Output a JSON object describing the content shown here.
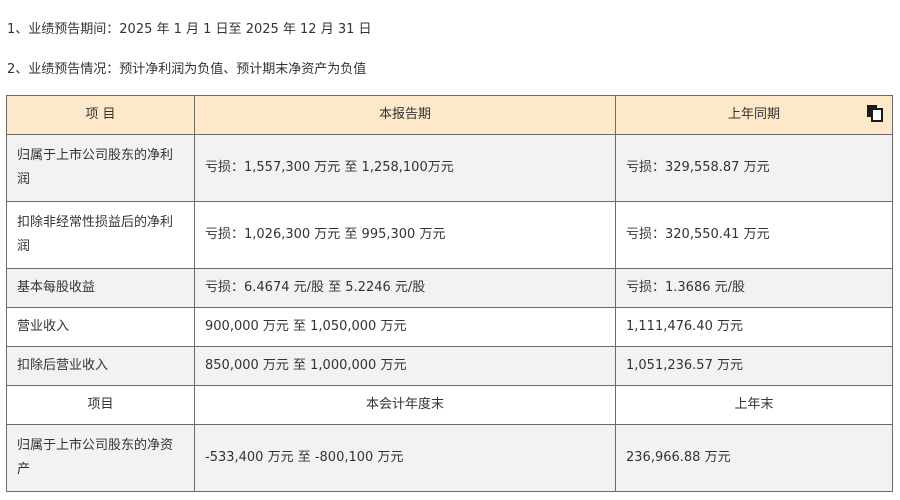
{
  "paragraphs": {
    "p1": "1、业绩预告期间：2025 年 1 月 1 日至 2025 年 12 月 31 日",
    "p2": "2、业绩预告情况：预计净利润为负值、预计期末净资产为负值"
  },
  "table": {
    "header": [
      "项  目",
      "本报告期",
      "上年同期"
    ],
    "copy_icon": "copy-icon",
    "rows": [
      [
        "归属于上市公司股东的净利润",
        "亏损：1,557,300 万元  至  1,258,100万元",
        "亏损：329,558.87 万元"
      ],
      [
        "扣除非经常性损益后的净利润",
        "亏损：1,026,300 万元  至  995,300 万元",
        "亏损：320,550.41 万元"
      ],
      [
        "基本每股收益",
        "亏损：6.4674 元/股  至  5.2246 元/股",
        "亏损：1.3686 元/股"
      ],
      [
        "营业收入",
        "900,000 万元  至  1,050,000 万元",
        "1,111,476.40 万元"
      ],
      [
        "扣除后营业收入",
        "850,000 万元  至  1,000,000 万元",
        "1,051,236.57 万元"
      ]
    ],
    "subheader": [
      "项目",
      "本会计年度末",
      "上年末"
    ],
    "last_row": [
      "归属于上市公司股东的净资产",
      "-533,400 万元  至  -800,100 万元",
      "236,966.88 万元"
    ]
  },
  "colors": {
    "header_bg": "#fde8c9",
    "zebra_bg": "#f2f2f2",
    "border": "#6b6b6b"
  }
}
